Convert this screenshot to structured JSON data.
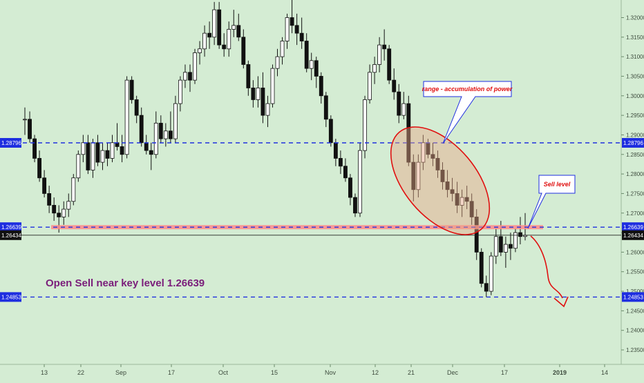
{
  "chart_data": {
    "type": "candlestick",
    "title": "",
    "ylim": [
      1.2313,
      1.3245
    ],
    "y_ticks": [
      "1.23500",
      "1.24000",
      "1.24500",
      "1.25000",
      "1.25500",
      "1.26000",
      "1.26500",
      "1.27000",
      "1.27500",
      "1.28000",
      "1.28500",
      "1.29000",
      "1.29500",
      "1.30000",
      "1.30500",
      "1.31000",
      "1.31500",
      "1.32000"
    ],
    "x_ticks": [
      "13",
      "22",
      "Sep",
      "17",
      "Oct",
      "15",
      "Nov",
      "12",
      "21",
      "Dec",
      "17",
      "2019",
      "14"
    ],
    "candles": [
      [
        1.294,
        1.297,
        1.29,
        1.294
      ],
      [
        1.294,
        1.296,
        1.288,
        1.289
      ],
      [
        1.289,
        1.29,
        1.283,
        1.284
      ],
      [
        1.284,
        1.286,
        1.278,
        1.279
      ],
      [
        1.279,
        1.281,
        1.274,
        1.275
      ],
      [
        1.275,
        1.277,
        1.27,
        1.272
      ],
      [
        1.272,
        1.274,
        1.268,
        1.27
      ],
      [
        1.27,
        1.272,
        1.265,
        1.269
      ],
      [
        1.269,
        1.273,
        1.267,
        1.271
      ],
      [
        1.271,
        1.275,
        1.269,
        1.273
      ],
      [
        1.273,
        1.28,
        1.272,
        1.279
      ],
      [
        1.279,
        1.286,
        1.278,
        1.285
      ],
      [
        1.285,
        1.29,
        1.283,
        1.288
      ],
      [
        1.288,
        1.29,
        1.28,
        1.281
      ],
      [
        1.281,
        1.289,
        1.279,
        1.288
      ],
      [
        1.288,
        1.29,
        1.282,
        1.283
      ],
      [
        1.283,
        1.288,
        1.281,
        1.286
      ],
      [
        1.286,
        1.288,
        1.282,
        1.284
      ],
      [
        1.284,
        1.29,
        1.283,
        1.288
      ],
      [
        1.288,
        1.293,
        1.286,
        1.287
      ],
      [
        1.287,
        1.29,
        1.283,
        1.285
      ],
      [
        1.285,
        1.305,
        1.284,
        1.304
      ],
      [
        1.304,
        1.305,
        1.298,
        1.299
      ],
      [
        1.299,
        1.3,
        1.293,
        1.295
      ],
      [
        1.295,
        1.297,
        1.287,
        1.288
      ],
      [
        1.288,
        1.29,
        1.285,
        1.286
      ],
      [
        1.286,
        1.288,
        1.281,
        1.285
      ],
      [
        1.285,
        1.296,
        1.284,
        1.293
      ],
      [
        1.293,
        1.295,
        1.288,
        1.289
      ],
      [
        1.289,
        1.293,
        1.287,
        1.291
      ],
      [
        1.291,
        1.296,
        1.288,
        1.289
      ],
      [
        1.289,
        1.3,
        1.288,
        1.298
      ],
      [
        1.298,
        1.305,
        1.296,
        1.304
      ],
      [
        1.304,
        1.308,
        1.302,
        1.306
      ],
      [
        1.306,
        1.308,
        1.301,
        1.304
      ],
      [
        1.304,
        1.312,
        1.303,
        1.311
      ],
      [
        1.311,
        1.314,
        1.308,
        1.312
      ],
      [
        1.312,
        1.318,
        1.31,
        1.316
      ],
      [
        1.316,
        1.319,
        1.312,
        1.315
      ],
      [
        1.315,
        1.324,
        1.313,
        1.322
      ],
      [
        1.322,
        1.324,
        1.312,
        1.313
      ],
      [
        1.313,
        1.316,
        1.31,
        1.312
      ],
      [
        1.312,
        1.319,
        1.31,
        1.317
      ],
      [
        1.317,
        1.322,
        1.315,
        1.318
      ],
      [
        1.318,
        1.321,
        1.314,
        1.315
      ],
      [
        1.315,
        1.317,
        1.307,
        1.308
      ],
      [
        1.308,
        1.309,
        1.3,
        1.302
      ],
      [
        1.302,
        1.304,
        1.297,
        1.299
      ],
      [
        1.299,
        1.305,
        1.297,
        1.302
      ],
      [
        1.302,
        1.306,
        1.293,
        1.295
      ],
      [
        1.295,
        1.3,
        1.292,
        1.298
      ],
      [
        1.298,
        1.308,
        1.297,
        1.307
      ],
      [
        1.307,
        1.312,
        1.305,
        1.31
      ],
      [
        1.31,
        1.315,
        1.308,
        1.314
      ],
      [
        1.314,
        1.321,
        1.312,
        1.32
      ],
      [
        1.32,
        1.325,
        1.316,
        1.318
      ],
      [
        1.318,
        1.321,
        1.313,
        1.316
      ],
      [
        1.316,
        1.32,
        1.312,
        1.314
      ],
      [
        1.314,
        1.316,
        1.306,
        1.307
      ],
      [
        1.307,
        1.311,
        1.304,
        1.309
      ],
      [
        1.309,
        1.31,
        1.302,
        1.305
      ],
      [
        1.305,
        1.306,
        1.298,
        1.3
      ],
      [
        1.3,
        1.301,
        1.292,
        1.294
      ],
      [
        1.294,
        1.295,
        1.287,
        1.288
      ],
      [
        1.288,
        1.289,
        1.282,
        1.284
      ],
      [
        1.284,
        1.286,
        1.28,
        1.282
      ],
      [
        1.282,
        1.284,
        1.278,
        1.279
      ],
      [
        1.279,
        1.28,
        1.272,
        1.274
      ],
      [
        1.274,
        1.275,
        1.269,
        1.27
      ],
      [
        1.27,
        1.288,
        1.269,
        1.286
      ],
      [
        1.286,
        1.3,
        1.284,
        1.299
      ],
      [
        1.299,
        1.308,
        1.298,
        1.306
      ],
      [
        1.306,
        1.31,
        1.303,
        1.308
      ],
      [
        1.308,
        1.315,
        1.306,
        1.313
      ],
      [
        1.313,
        1.317,
        1.309,
        1.312
      ],
      [
        1.312,
        1.313,
        1.303,
        1.304
      ],
      [
        1.304,
        1.307,
        1.299,
        1.301
      ],
      [
        1.301,
        1.303,
        1.293,
        1.295
      ],
      [
        1.295,
        1.301,
        1.294,
        1.298
      ],
      [
        1.298,
        1.3,
        1.282,
        1.283
      ],
      [
        1.283,
        1.285,
        1.273,
        1.276
      ],
      [
        1.276,
        1.285,
        1.274,
        1.283
      ],
      [
        1.283,
        1.29,
        1.281,
        1.288
      ],
      [
        1.288,
        1.289,
        1.284,
        1.285
      ],
      [
        1.285,
        1.288,
        1.282,
        1.284
      ],
      [
        1.284,
        1.286,
        1.279,
        1.281
      ],
      [
        1.281,
        1.283,
        1.276,
        1.278
      ],
      [
        1.278,
        1.281,
        1.274,
        1.276
      ],
      [
        1.276,
        1.279,
        1.273,
        1.275
      ],
      [
        1.275,
        1.278,
        1.27,
        1.272
      ],
      [
        1.272,
        1.276,
        1.269,
        1.274
      ],
      [
        1.274,
        1.277,
        1.271,
        1.273
      ],
      [
        1.273,
        1.275,
        1.267,
        1.269
      ],
      [
        1.269,
        1.271,
        1.258,
        1.26
      ],
      [
        1.26,
        1.261,
        1.251,
        1.252
      ],
      [
        1.252,
        1.254,
        1.2485,
        1.25
      ],
      [
        1.25,
        1.26,
        1.249,
        1.259
      ],
      [
        1.259,
        1.266,
        1.257,
        1.264
      ],
      [
        1.264,
        1.268,
        1.259,
        1.26
      ],
      [
        1.26,
        1.264,
        1.256,
        1.262
      ],
      [
        1.262,
        1.265,
        1.258,
        1.261
      ],
      [
        1.261,
        1.266,
        1.26,
        1.265
      ],
      [
        1.265,
        1.269,
        1.262,
        1.264
      ],
      [
        1.264,
        1.27,
        1.263,
        1.2643
      ]
    ],
    "levels": [
      {
        "value": 1.28796,
        "label": "1.28796",
        "style": "dashed",
        "color": "#1e2ee0"
      },
      {
        "value": 1.26639,
        "label": "1.26639",
        "style": "dashed",
        "color": "#1e2ee0"
      },
      {
        "value": 1.24853,
        "label": "1.24853",
        "style": "dashed",
        "color": "#1e2ee0"
      }
    ],
    "current_price": {
      "value": 1.26434,
      "label": "1.26434"
    },
    "annotations": {
      "callout_range": "range - accumulation of power",
      "callout_sell": "Sell level",
      "main_text": "Open Sell near key level  1.26639"
    }
  }
}
